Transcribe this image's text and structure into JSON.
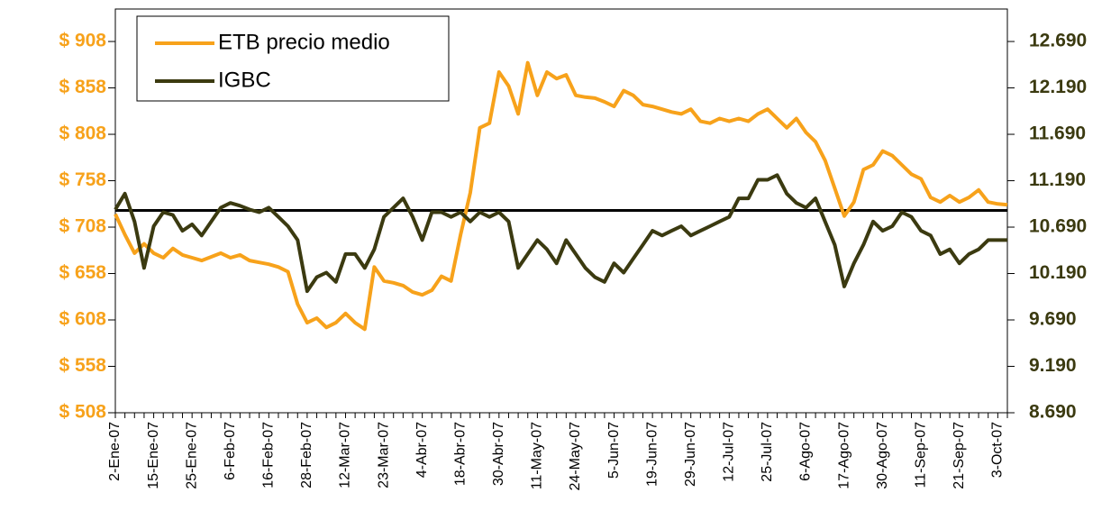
{
  "chart_data": {
    "type": "line",
    "categories": [
      "2-Ene-07",
      null,
      null,
      null,
      "15-Ene-07",
      null,
      null,
      null,
      "25-Ene-07",
      null,
      null,
      null,
      "6-Feb-07",
      null,
      null,
      null,
      "16-Feb-07",
      null,
      null,
      null,
      "28-Feb-07",
      null,
      null,
      null,
      "12-Mar-07",
      null,
      null,
      null,
      "23-Mar-07",
      null,
      null,
      null,
      "4-Abr-07",
      null,
      null,
      null,
      "18-Abr-07",
      null,
      null,
      null,
      "30-Abr-07",
      null,
      null,
      null,
      "11-May-07",
      null,
      null,
      null,
      "24-May-07",
      null,
      null,
      null,
      "5-Jun-07",
      null,
      null,
      null,
      "19-Jun-07",
      null,
      null,
      null,
      "29-Jun-07",
      null,
      null,
      null,
      "12-Jul-07",
      null,
      null,
      null,
      "25-Jul-07",
      null,
      null,
      null,
      "6-Ago-07",
      null,
      null,
      null,
      "17-Ago-07",
      null,
      null,
      null,
      "30-Ago-07",
      null,
      null,
      null,
      "11-Sep-07",
      null,
      null,
      null,
      "21-Sep-07",
      null,
      null,
      null,
      "3-Oct-07",
      null
    ],
    "series": [
      {
        "name": "ETB precio medio",
        "color": "#f7a21b",
        "axis": "y",
        "values": [
          722,
          700,
          680,
          690,
          680,
          675,
          685,
          678,
          675,
          672,
          676,
          680,
          675,
          678,
          672,
          670,
          668,
          665,
          660,
          625,
          605,
          610,
          600,
          605,
          615,
          605,
          598,
          665,
          650,
          648,
          645,
          638,
          635,
          640,
          655,
          650,
          700,
          745,
          815,
          820,
          875,
          860,
          830,
          885,
          850,
          875,
          868,
          872,
          850,
          848,
          847,
          843,
          838,
          855,
          850,
          840,
          838,
          835,
          832,
          830,
          835,
          822,
          820,
          825,
          822,
          825,
          822,
          830,
          835,
          825,
          815,
          825,
          810,
          800,
          780,
          750,
          720,
          735,
          770,
          775,
          790,
          785,
          775,
          765,
          760,
          740,
          735,
          742,
          735,
          740,
          748,
          735,
          733,
          732
        ]
      },
      {
        "name": "IGBC",
        "color": "#3b3a10",
        "axis": "y2",
        "values": [
          10880,
          11050,
          10750,
          10250,
          10700,
          10850,
          10820,
          10650,
          10720,
          10600,
          10750,
          10900,
          10950,
          10920,
          10880,
          10850,
          10900,
          10800,
          10700,
          10550,
          10000,
          10150,
          10200,
          10100,
          10400,
          10400,
          10250,
          10450,
          10800,
          10900,
          11000,
          10800,
          10550,
          10850,
          10850,
          10800,
          10850,
          10750,
          10850,
          10800,
          10850,
          10750,
          10250,
          10400,
          10550,
          10450,
          10300,
          10550,
          10400,
          10250,
          10150,
          10100,
          10300,
          10200,
          10350,
          10500,
          10650,
          10600,
          10650,
          10700,
          10600,
          10650,
          10700,
          10750,
          10800,
          11000,
          11000,
          11200,
          11200,
          11250,
          11050,
          10950,
          10900,
          11000,
          10750,
          10500,
          10050,
          10300,
          10500,
          10750,
          10650,
          10700,
          10850,
          10800,
          10650,
          10600,
          10400,
          10450,
          10300,
          10400,
          10450,
          10550,
          10550,
          10550
        ]
      }
    ],
    "reference_line": 726,
    "ylim": [
      508,
      943
    ],
    "yticks": [
      {
        "value": 508,
        "label": "$ 508"
      },
      {
        "value": 558,
        "label": "$ 558"
      },
      {
        "value": 608,
        "label": "$ 608"
      },
      {
        "value": 658,
        "label": "$ 658"
      },
      {
        "value": 708,
        "label": "$ 708"
      },
      {
        "value": 758,
        "label": "$ 758"
      },
      {
        "value": 808,
        "label": "$ 808"
      },
      {
        "value": 858,
        "label": "$ 858"
      },
      {
        "value": 908,
        "label": "$ 908"
      }
    ],
    "y2lim": [
      8690,
      13040
    ],
    "y2ticks": [
      {
        "value": 8690,
        "label": "8.690"
      },
      {
        "value": 9190,
        "label": "9.190"
      },
      {
        "value": 9690,
        "label": "9.690"
      },
      {
        "value": 10190,
        "label": "10.190"
      },
      {
        "value": 10690,
        "label": "10.690"
      },
      {
        "value": 11190,
        "label": "11.190"
      },
      {
        "value": 11690,
        "label": "11.690"
      },
      {
        "value": 12190,
        "label": "12.190"
      },
      {
        "value": 12690,
        "label": "12.690"
      }
    ],
    "legend": "upper left"
  }
}
